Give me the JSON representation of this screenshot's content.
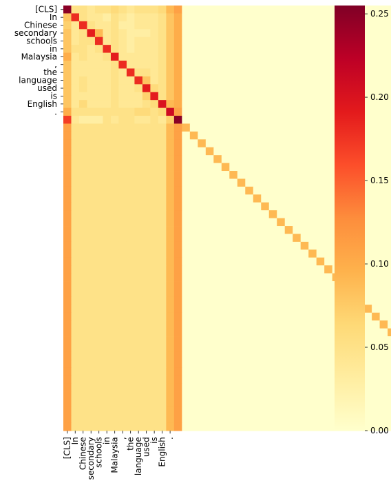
{
  "chart_data": {
    "type": "heatmap",
    "title": "",
    "xlabel": "",
    "ylabel": "",
    "x_tick_labels": [
      "[CLS]",
      "In",
      "Chinese",
      "secondary",
      "schools",
      "in",
      "Malaysia",
      ",",
      "the",
      "language",
      "used",
      "is",
      "English",
      "."
    ],
    "y_tick_labels": [
      "[CLS]",
      "In",
      "Chinese",
      "secondary",
      "schools",
      "in",
      "Malaysia",
      ",",
      "the",
      "language",
      "used",
      "is",
      "English",
      "."
    ],
    "n_rows": 54,
    "n_cols": 54,
    "colorbar": {
      "colormap": "YlOrRd",
      "min": 0.0,
      "max": 0.255,
      "ticks": [
        "0.00",
        "0.05",
        "0.10",
        "0.15",
        "0.20",
        "0.25"
      ],
      "tick_values": [
        0.0,
        0.05,
        0.1,
        0.15,
        0.2,
        0.25
      ]
    },
    "matrix_description": "attention weights; rows 0-13 tokens, row 14 [SEP], rows 15-53 padding",
    "rows_head": [
      [
        0.25,
        0.05,
        0.05,
        0.04,
        0.05,
        0.05,
        0.06,
        0.05,
        0.04,
        0.05,
        0.05,
        0.05,
        0.06,
        0.09,
        0.11
      ],
      [
        0.08,
        0.18,
        0.05,
        0.04,
        0.04,
        0.03,
        0.05,
        0.04,
        0.03,
        0.04,
        0.04,
        0.04,
        0.05,
        0.08,
        0.1
      ],
      [
        0.07,
        0.04,
        0.18,
        0.05,
        0.04,
        0.04,
        0.05,
        0.03,
        0.03,
        0.04,
        0.04,
        0.04,
        0.05,
        0.08,
        0.1
      ],
      [
        0.08,
        0.04,
        0.05,
        0.19,
        0.09,
        0.04,
        0.05,
        0.04,
        0.03,
        0.03,
        0.03,
        0.04,
        0.05,
        0.08,
        0.1
      ],
      [
        0.08,
        0.04,
        0.05,
        0.05,
        0.18,
        0.04,
        0.05,
        0.04,
        0.03,
        0.04,
        0.04,
        0.04,
        0.05,
        0.08,
        0.1
      ],
      [
        0.08,
        0.05,
        0.05,
        0.04,
        0.05,
        0.18,
        0.05,
        0.04,
        0.03,
        0.04,
        0.04,
        0.04,
        0.05,
        0.08,
        0.1
      ],
      [
        0.1,
        0.04,
        0.05,
        0.04,
        0.04,
        0.05,
        0.19,
        0.04,
        0.04,
        0.04,
        0.04,
        0.04,
        0.05,
        0.08,
        0.1
      ],
      [
        0.08,
        0.04,
        0.04,
        0.04,
        0.04,
        0.04,
        0.05,
        0.18,
        0.04,
        0.04,
        0.04,
        0.04,
        0.05,
        0.08,
        0.1
      ],
      [
        0.08,
        0.04,
        0.04,
        0.04,
        0.04,
        0.04,
        0.05,
        0.04,
        0.18,
        0.05,
        0.05,
        0.04,
        0.05,
        0.08,
        0.1
      ],
      [
        0.08,
        0.04,
        0.05,
        0.04,
        0.04,
        0.04,
        0.05,
        0.04,
        0.04,
        0.18,
        0.08,
        0.04,
        0.05,
        0.08,
        0.1
      ],
      [
        0.08,
        0.04,
        0.05,
        0.04,
        0.04,
        0.04,
        0.05,
        0.04,
        0.04,
        0.05,
        0.19,
        0.06,
        0.05,
        0.08,
        0.1
      ],
      [
        0.08,
        0.04,
        0.04,
        0.04,
        0.04,
        0.04,
        0.05,
        0.04,
        0.04,
        0.04,
        0.07,
        0.19,
        0.05,
        0.08,
        0.1
      ],
      [
        0.08,
        0.04,
        0.06,
        0.04,
        0.04,
        0.04,
        0.05,
        0.04,
        0.04,
        0.04,
        0.05,
        0.06,
        0.2,
        0.09,
        0.1
      ],
      [
        0.1,
        0.05,
        0.05,
        0.05,
        0.05,
        0.05,
        0.05,
        0.05,
        0.05,
        0.06,
        0.06,
        0.05,
        0.06,
        0.21,
        0.11
      ],
      [
        0.17,
        0.04,
        0.03,
        0.03,
        0.03,
        0.05,
        0.04,
        0.05,
        0.05,
        0.04,
        0.04,
        0.05,
        0.04,
        0.07,
        0.25
      ]
    ],
    "padding_rows": {
      "first_row": 15,
      "col0": 0.11,
      "cols_1_to_12": 0.05,
      "col13": 0.09,
      "col14": 0.11,
      "diagonal": 0.09,
      "other": 0.0
    }
  }
}
